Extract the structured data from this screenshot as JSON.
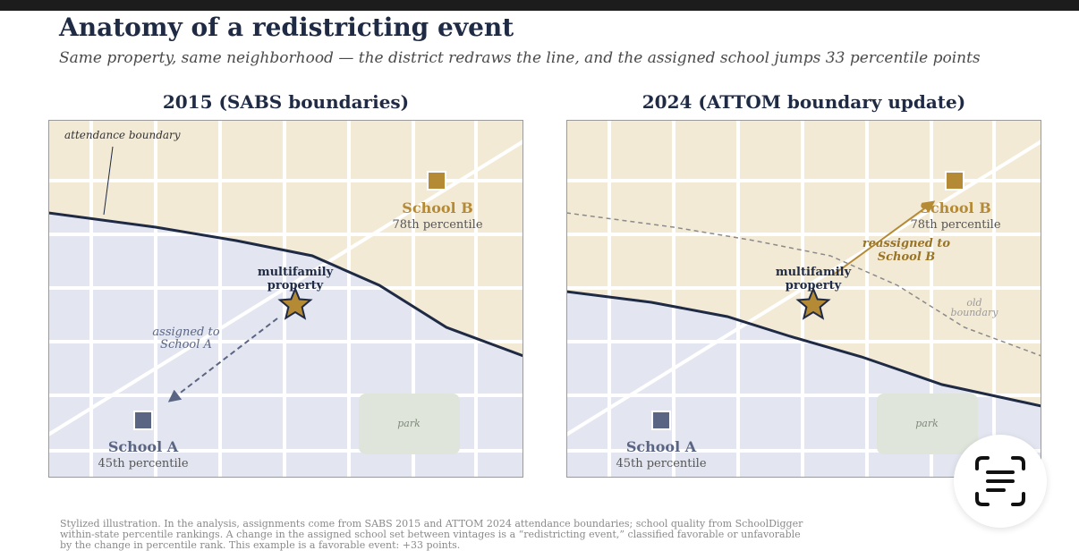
{
  "header": {
    "title": "Anatomy of a redistricting event",
    "subtitle": "Same property, same neighborhood — the district redraws the line, and the assigned school jumps 33 percentile points"
  },
  "panels": [
    {
      "title": "2015  (SABS boundaries)",
      "boundary_label": "attendance boundary",
      "school_a": {
        "name": "School A",
        "percentile": "45th percentile"
      },
      "school_b": {
        "name": "School B",
        "percentile": "78th percentile"
      },
      "property": {
        "line1": "multifamily",
        "line2": "property"
      },
      "assignment": {
        "line1": "assigned to",
        "line2": "School A"
      },
      "park": "park"
    },
    {
      "title": "2024  (ATTOM boundary update)",
      "school_a": {
        "name": "School A",
        "percentile": "45th percentile"
      },
      "school_b": {
        "name": "School B",
        "percentile": "78th percentile"
      },
      "property": {
        "line1": "multifamily",
        "line2": "property"
      },
      "assignment": {
        "line1": "reassigned to",
        "line2": "School B"
      },
      "old_boundary": {
        "line1": "old",
        "line2": "boundary"
      },
      "park": "park"
    }
  ],
  "footnote": {
    "line1": "Stylized illustration. In the analysis, assignments come from SABS 2015 and ATTOM 2024 attendance boundaries; school quality from SchoolDigger",
    "line2": "within-state percentile rankings. A change in the assigned school set between vintages is a “redistricting event,” classified favorable or unfavorable",
    "line3": "by the change in percentile rank. This example is a favorable event: +33 points."
  },
  "colors": {
    "navy": "#1f2a44",
    "zone_a": "#e3e6f0",
    "zone_b": "#f3ead6",
    "school_a": "#5a6584",
    "school_b": "#b58a35",
    "park": "#dfe5db",
    "star": "#b58a35"
  },
  "icons": {
    "marker_a": "square",
    "marker_b": "square",
    "property": "star",
    "lens_button": "text-scan-icon"
  }
}
